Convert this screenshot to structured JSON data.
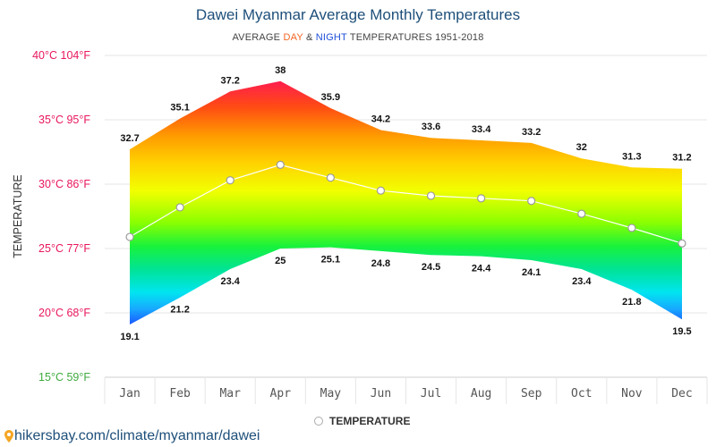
{
  "title": "Dawei Myanmar Average Monthly Temperatures",
  "subtitle": {
    "prefix": "AVERAGE ",
    "day": "DAY",
    "mid": " & ",
    "night": "NIGHT",
    "suffix": " TEMPERATURES 1951-2018"
  },
  "legend_label": "TEMPERATURE",
  "footer_text": "hikersbay.com/climate/myanmar/dawei",
  "colors": {
    "title": "#1e4f7a",
    "day": "#f26522",
    "night": "#1f4fd8",
    "hot": "#ff1f4b",
    "cold": "#1a5cff"
  },
  "chart_data": {
    "type": "area",
    "ylabel": "TEMPERATURE",
    "ylim": [
      15,
      40
    ],
    "y_ticks": [
      {
        "value": 40,
        "label": "40°C 104°F",
        "color": "#e8175d"
      },
      {
        "value": 35,
        "label": "35°C 95°F",
        "color": "#e8175d"
      },
      {
        "value": 30,
        "label": "30°C 86°F",
        "color": "#e8175d"
      },
      {
        "value": 25,
        "label": "25°C 77°F",
        "color": "#e8175d"
      },
      {
        "value": 20,
        "label": "20°C 68°F",
        "color": "#e8175d"
      },
      {
        "value": 15,
        "label": "15°C 59°F",
        "color": "#3faa3f"
      }
    ],
    "categories": [
      "Jan",
      "Feb",
      "Mar",
      "Apr",
      "May",
      "Jun",
      "Jul",
      "Aug",
      "Sep",
      "Oct",
      "Nov",
      "Dec"
    ],
    "series": [
      {
        "name": "DAY",
        "values": [
          32.7,
          35.1,
          37.2,
          38,
          35.9,
          34.2,
          33.6,
          33.4,
          33.2,
          32,
          31.3,
          31.2
        ]
      },
      {
        "name": "NIGHT",
        "values": [
          19.1,
          21.2,
          23.4,
          25,
          25.1,
          24.8,
          24.5,
          24.4,
          24.1,
          23.4,
          21.8,
          19.5
        ]
      },
      {
        "name": "TEMPERATURE",
        "values": [
          25.9,
          28.2,
          30.3,
          31.5,
          30.5,
          29.5,
          29.1,
          28.9,
          28.7,
          27.7,
          26.6,
          25.4
        ]
      }
    ],
    "legend_placement": "bottom-center",
    "grid": true
  }
}
